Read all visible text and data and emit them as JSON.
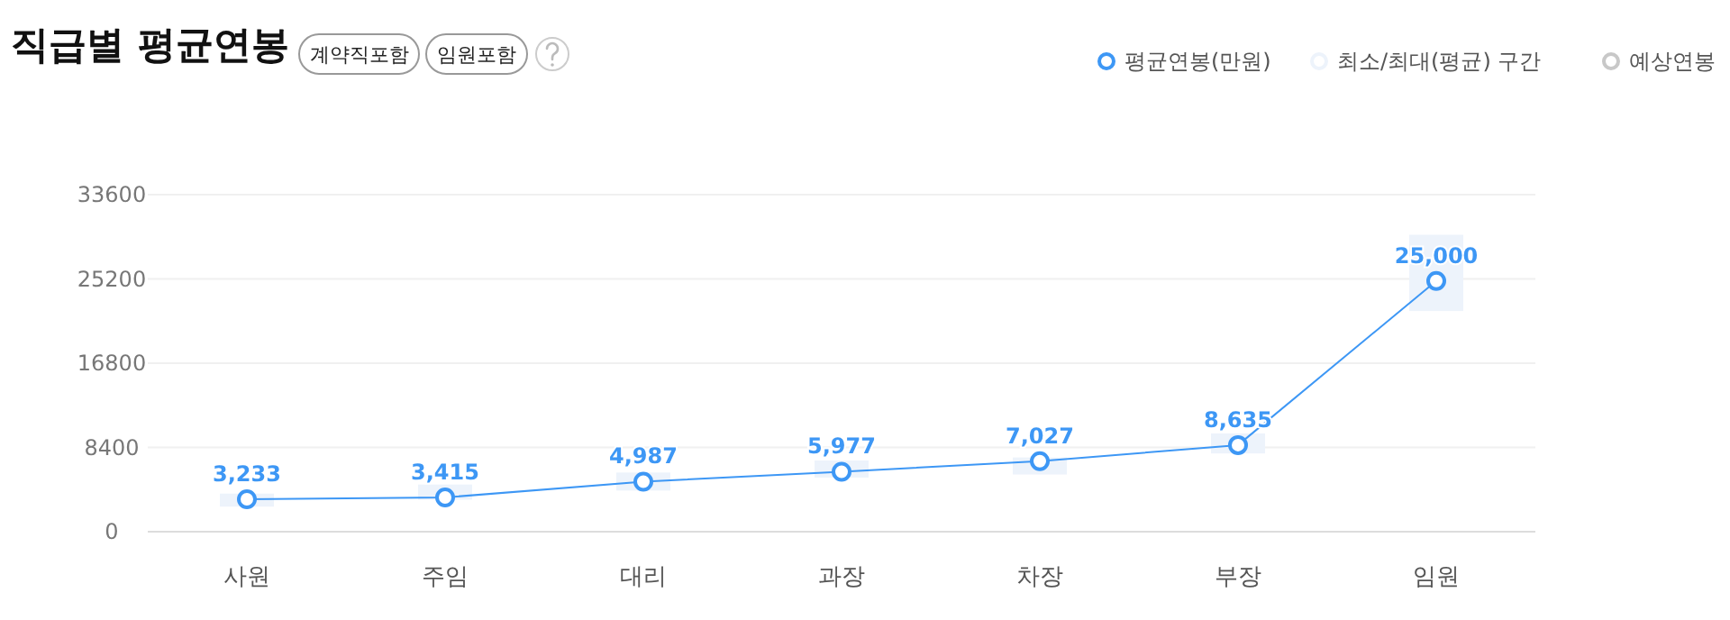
{
  "chart_data": {
    "type": "line",
    "title": "직급별 평균연봉",
    "annotations": [
      "계약직포함",
      "임원포함"
    ],
    "categories": [
      "사원",
      "주임",
      "대리",
      "과장",
      "차장",
      "부장",
      "임원"
    ],
    "series": [
      {
        "name": "평균연봉(만원)",
        "color": "#3d97f5",
        "values": [
          3233,
          3415,
          4987,
          5977,
          7027,
          8635,
          25000
        ],
        "value_labels": [
          "3,233",
          "3,415",
          "4,987",
          "5,977",
          "7,027",
          "8,635",
          "25,000"
        ]
      },
      {
        "name": "최소/최대(평균) 구간",
        "type": "bar",
        "color": "#edf3fb",
        "base": [
          2500,
          3200,
          4100,
          5400,
          5700,
          7800,
          22000
        ],
        "values": [
          1300,
          1500,
          1800,
          1700,
          1700,
          2000,
          7600
        ]
      },
      {
        "name": "예상연봉",
        "type": "line",
        "color": "#c8c8c8",
        "values": [
          null,
          null,
          null,
          null,
          null,
          null,
          null
        ]
      }
    ],
    "ylim": [
      0,
      33600
    ],
    "yticks": [
      0,
      8400,
      16800,
      25200,
      33600
    ],
    "grid": "y",
    "legend": "top right",
    "marker": "circle"
  }
}
